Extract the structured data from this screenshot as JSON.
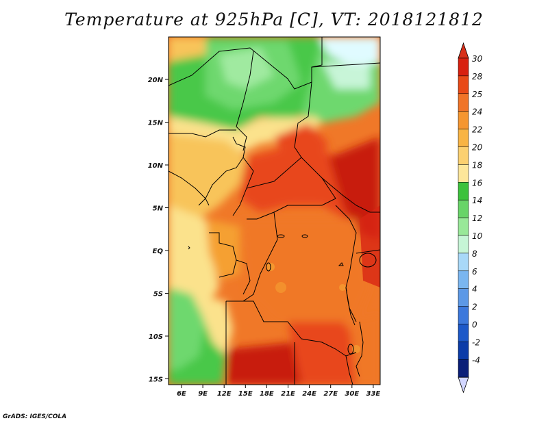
{
  "title": "Temperature at 925hPa [C], VT: 2018121812",
  "credit": "GrADS: IGES/COLA",
  "map": {
    "lat_labels": [
      "20N",
      "15N",
      "10N",
      "5N",
      "EQ",
      "5S",
      "10S",
      "15S"
    ],
    "lon_labels": [
      "6E",
      "9E",
      "12E",
      "15E",
      "18E",
      "21E",
      "24E",
      "27E",
      "30E",
      "33E"
    ],
    "colors": {
      "hot_core": "#c81e10",
      "hot": "#e8461c",
      "warm_orange": "#f07828",
      "orange": "#f5a032",
      "light_orange": "#f8c45a",
      "pale_yellow": "#fbe28c",
      "green": "#48c848",
      "light_green": "#6ed86e",
      "pale_green": "#a0eaa0",
      "mint": "#c8f5d8",
      "pale_cyan": "#e0fbff",
      "border": "#000000"
    }
  },
  "colorbar": {
    "labels": [
      "30",
      "28",
      "25",
      "24",
      "22",
      "20",
      "18",
      "16",
      "14",
      "12",
      "10",
      "8",
      "6",
      "4",
      "2",
      "0",
      "-2",
      "-4"
    ],
    "colors": [
      "#d82010",
      "#e84a18",
      "#f07428",
      "#f59630",
      "#f8b444",
      "#fbd070",
      "#fde69a",
      "#3cc23c",
      "#68d468",
      "#98e898",
      "#c6f5d6",
      "#a8d8f8",
      "#7ab6f0",
      "#5c98e6",
      "#3c78dc",
      "#1c58c8",
      "#0c3ca8",
      "#0a1e78"
    ],
    "top_arrow_color": "#d8301a",
    "bottom_arrow_color": "#d2d6ff"
  }
}
